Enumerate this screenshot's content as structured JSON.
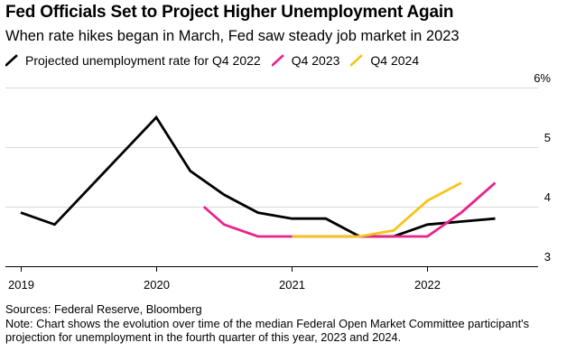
{
  "chart_data": {
    "type": "line",
    "title": "Fed Officials Set to Project Higher Unemployment Again",
    "subtitle": "When rate hikes began in March, Fed saw steady job market in 2023",
    "ylabel": "",
    "xlabel": "",
    "y_unit_label": "6%",
    "ylim": [
      3,
      6
    ],
    "yticks": [
      3,
      4,
      5,
      6
    ],
    "ytick_labels": [
      "3",
      "4",
      "5",
      "6%"
    ],
    "xlim": [
      2019,
      2022.75
    ],
    "xticks": [
      2019,
      2020,
      2021,
      2022
    ],
    "xtick_labels": [
      "2019",
      "2020",
      "2021",
      "2022"
    ],
    "grid": true,
    "legend_position": "top-left",
    "series": [
      {
        "name": "Projected unemployment rate for Q4 2022",
        "color": "#000000",
        "points": [
          [
            2019.0,
            3.9
          ],
          [
            2019.25,
            3.7
          ],
          [
            2020.0,
            5.5
          ],
          [
            2020.25,
            4.6
          ],
          [
            2020.5,
            4.2
          ],
          [
            2020.75,
            3.9
          ],
          [
            2021.0,
            3.8
          ],
          [
            2021.25,
            3.8
          ],
          [
            2021.5,
            3.5
          ],
          [
            2021.75,
            3.5
          ],
          [
            2022.0,
            3.7
          ],
          [
            2022.5,
            3.8
          ]
        ]
      },
      {
        "name": "Q4 2023",
        "color": "#e8238a",
        "points": [
          [
            2020.35,
            4.0
          ],
          [
            2020.5,
            3.7
          ],
          [
            2020.75,
            3.5
          ],
          [
            2021.0,
            3.5
          ],
          [
            2021.25,
            3.5
          ],
          [
            2021.5,
            3.5
          ],
          [
            2021.75,
            3.5
          ],
          [
            2022.0,
            3.5
          ],
          [
            2022.25,
            3.9
          ],
          [
            2022.5,
            4.4
          ]
        ]
      },
      {
        "name": "Q4 2024",
        "color": "#f5c518",
        "points": [
          [
            2021.0,
            3.5
          ],
          [
            2021.25,
            3.5
          ],
          [
            2021.5,
            3.5
          ],
          [
            2021.75,
            3.6
          ],
          [
            2022.0,
            4.1
          ],
          [
            2022.25,
            4.4
          ]
        ]
      }
    ]
  },
  "footer": {
    "sources": "Sources: Federal Reserve, Bloomberg",
    "note_line1": "Note: Chart shows the evolution over time of the median Federal Open Market Committee participant's",
    "note_line2": "projection for unemployment in the fourth quarter of this year, 2023 and 2024."
  }
}
